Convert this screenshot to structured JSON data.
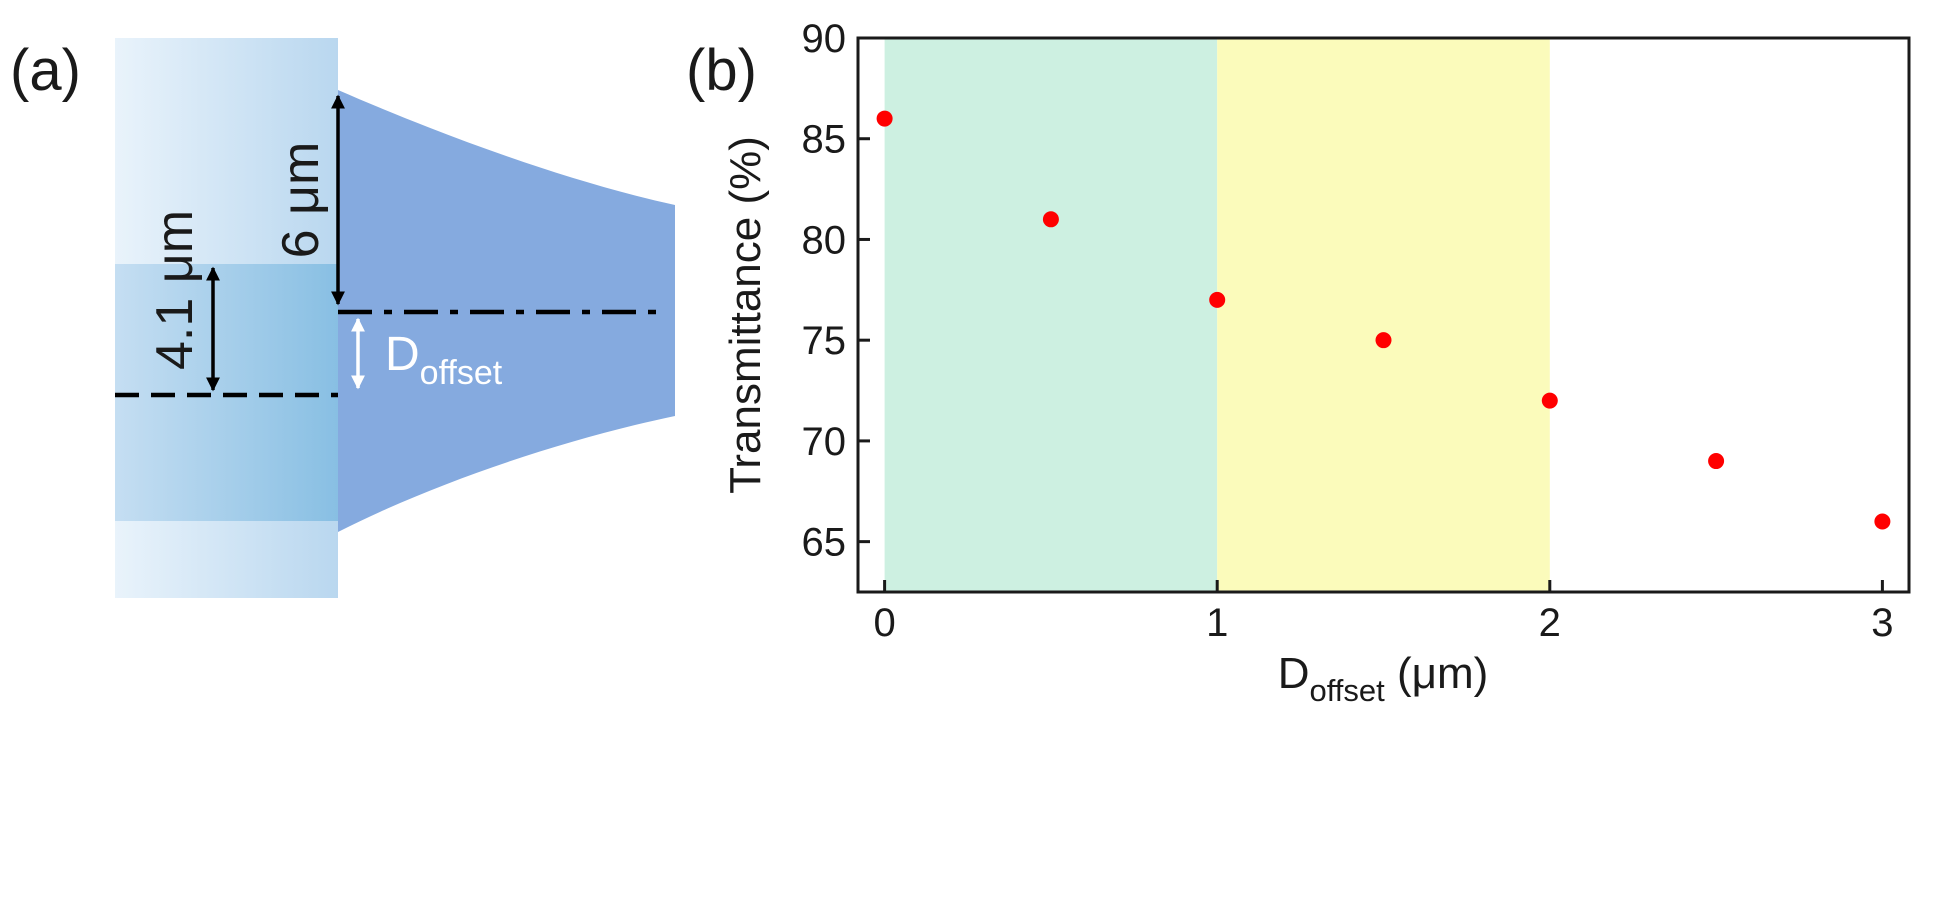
{
  "panel_a": {
    "label": "(a)",
    "dim_6um": "6 μm",
    "dim_41um": "4.1 μm",
    "doffset_main": "D",
    "doffset_sub": "offset",
    "colors": {
      "fiber_light": "#dcebf7",
      "fiber_mid": "#bcd8ee",
      "core_light": "#b8d7ef",
      "core_dark": "#8dc2e4",
      "taper": "#85aadf"
    }
  },
  "panel_b": {
    "label": "(b)",
    "xlabel_main": "D",
    "xlabel_sub": "offset",
    "xlabel_unit": " (μm)",
    "ylabel": "Transmittance (%)"
  },
  "chart_data": {
    "type": "scatter",
    "title": "",
    "xlabel": "Doffset (μm)",
    "ylabel": "Transmittance (%)",
    "x": [
      0,
      0.5,
      1,
      1.5,
      2,
      2.5,
      3
    ],
    "y": [
      86,
      81,
      77,
      75,
      72,
      69,
      66
    ],
    "xlim": [
      -0.08,
      3.08
    ],
    "ylim": [
      62.5,
      90
    ],
    "xticks": [
      0,
      1,
      2,
      3
    ],
    "yticks": [
      65,
      70,
      75,
      80,
      85,
      90
    ],
    "marker_color": "#ff0000",
    "shaded_regions": [
      {
        "from": 0,
        "to": 1,
        "color": "#cdf0e1"
      },
      {
        "from": 1,
        "to": 2,
        "color": "#fbfbbb"
      }
    ],
    "grid": false,
    "legend": "none"
  }
}
